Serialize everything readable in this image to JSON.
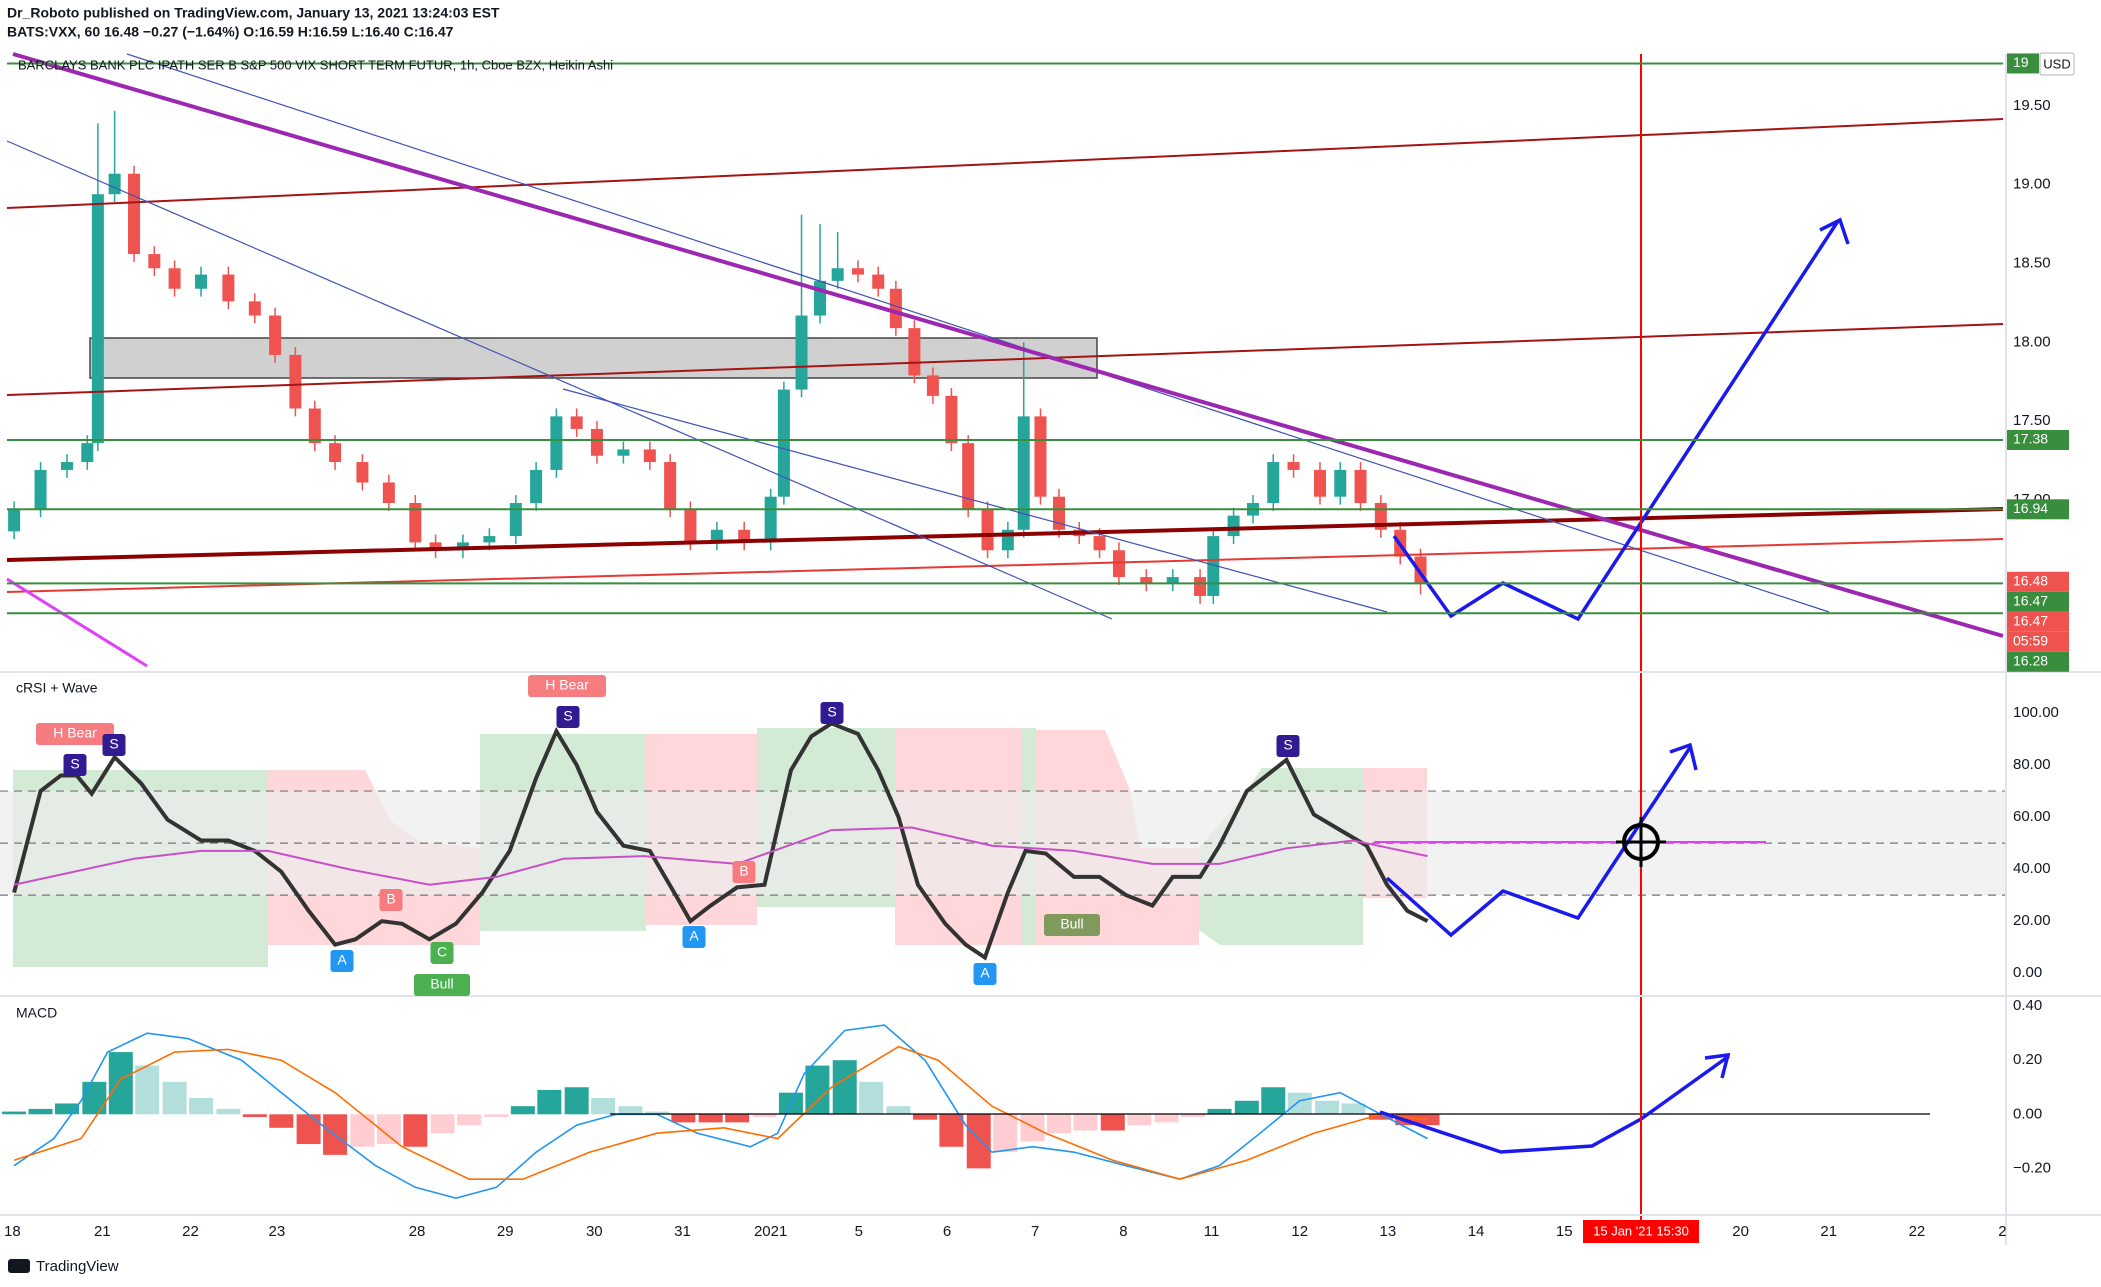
{
  "header": {
    "publisher": "Dr_Roboto published on TradingView.com, January 13, 2021 13:24:03 EST",
    "symbol_line": "BATS:VXX, 60  16.48  −0.27 (−1.64%)  O:16.59  H:16.59  L:16.40  C:16.47",
    "currency": "USD",
    "crosshair_time": "15 Jan '21  15:30"
  },
  "footer": {
    "logo": "TradingView"
  },
  "chart_data": [
    {
      "type": "candlestick",
      "title": "BARCLAYS BANK PLC IPATH SER B S&P 500 VIX SHORT TERM FUTUR, 1h, Cboe BZX, Heikin Ashi",
      "up_color": "#26a69a",
      "down_color": "#ef5350",
      "xlim": [
        -0.14,
        22.61
      ],
      "xticks": [
        {
          "value": 0,
          "label": "18"
        },
        {
          "value": 1.02,
          "label": "21"
        },
        {
          "value": 2.02,
          "label": "22"
        },
        {
          "value": 3.0,
          "label": "23"
        },
        {
          "value": 4.59,
          "label": "28"
        },
        {
          "value": 5.59,
          "label": "29"
        },
        {
          "value": 6.6,
          "label": "30"
        },
        {
          "value": 7.6,
          "label": "31"
        },
        {
          "value": 8.6,
          "label": "2021"
        },
        {
          "value": 9.6,
          "label": "5"
        },
        {
          "value": 10.6,
          "label": "6"
        },
        {
          "value": 11.6,
          "label": "7"
        },
        {
          "value": 12.6,
          "label": "8"
        },
        {
          "value": 13.6,
          "label": "11"
        },
        {
          "value": 14.6,
          "label": "12"
        },
        {
          "value": 15.6,
          "label": "13"
        },
        {
          "value": 16.6,
          "label": "14"
        },
        {
          "value": 17.6,
          "label": "15"
        },
        {
          "value": 19.6,
          "label": "20"
        },
        {
          "value": 20.6,
          "label": "21"
        },
        {
          "value": 21.6,
          "label": "22"
        },
        {
          "value": 22.57,
          "label": "2"
        }
      ],
      "ylim": [
        15.92,
        19.83
      ],
      "yticks": [
        {
          "value": 17,
          "label": "17.00"
        },
        {
          "value": 17.5,
          "label": "17.50"
        },
        {
          "value": 18,
          "label": "18.00"
        },
        {
          "value": 18.5,
          "label": "18.50"
        },
        {
          "value": 19,
          "label": "19.00"
        },
        {
          "value": 19.5,
          "label": "19.50"
        }
      ],
      "grid": false,
      "x": [
        0.02,
        0.32,
        0.62,
        0.85,
        0.97,
        1.16,
        1.38,
        1.61,
        1.84,
        2.14,
        2.45,
        2.75,
        2.98,
        3.21,
        3.43,
        3.66,
        3.97,
        4.27,
        4.57,
        4.8,
        5.11,
        5.41,
        5.71,
        5.94,
        6.17,
        6.4,
        6.63,
        6.93,
        7.23,
        7.46,
        7.69,
        7.99,
        8.3,
        8.6,
        8.75,
        8.95,
        9.16,
        9.36,
        9.59,
        9.82,
        10.02,
        10.23,
        10.44,
        10.65,
        10.84,
        11.06,
        11.29,
        11.47,
        11.66,
        11.87,
        12.1,
        12.33,
        12.55,
        12.86,
        13.16,
        13.47,
        13.62,
        13.85,
        14.07,
        14.3,
        14.53,
        14.83,
        15.06,
        15.29,
        15.52,
        15.74,
        15.97
      ],
      "open": [
        16.8,
        16.94,
        17.19,
        17.24,
        17.36,
        18.94,
        19.07,
        18.56,
        18.47,
        18.34,
        18.43,
        18.26,
        18.17,
        17.92,
        17.58,
        17.36,
        17.24,
        17.11,
        16.98,
        16.73,
        16.68,
        16.73,
        16.77,
        16.98,
        17.19,
        17.53,
        17.45,
        17.28,
        17.32,
        17.24,
        16.94,
        16.73,
        16.81,
        16.73,
        17.02,
        17.7,
        18.17,
        18.39,
        18.47,
        18.43,
        18.34,
        18.09,
        17.79,
        17.66,
        17.36,
        16.94,
        16.68,
        16.81,
        17.53,
        17.02,
        16.81,
        16.77,
        16.68,
        16.51,
        16.47,
        16.51,
        16.39,
        16.77,
        16.9,
        16.98,
        17.24,
        17.19,
        17.02,
        17.19,
        16.98,
        16.81,
        16.64
      ],
      "high": [
        16.99,
        17.24,
        17.29,
        17.41,
        19.39,
        19.47,
        19.12,
        18.61,
        18.52,
        18.48,
        18.48,
        18.31,
        18.22,
        17.97,
        17.63,
        17.41,
        17.29,
        17.16,
        17.03,
        16.78,
        16.78,
        16.82,
        17.03,
        17.24,
        17.58,
        17.58,
        17.5,
        17.37,
        17.37,
        17.29,
        16.99,
        16.86,
        16.86,
        17.07,
        17.75,
        18.81,
        18.75,
        18.7,
        18.52,
        18.48,
        18.39,
        18.14,
        17.84,
        17.71,
        17.41,
        16.99,
        16.86,
        18.0,
        17.58,
        17.07,
        16.86,
        16.82,
        16.73,
        16.56,
        16.56,
        16.56,
        16.82,
        16.95,
        17.03,
        17.29,
        17.29,
        17.24,
        17.24,
        17.24,
        17.03,
        16.86,
        16.69
      ],
      "low": [
        16.75,
        16.89,
        17.14,
        17.19,
        17.31,
        18.89,
        18.51,
        18.42,
        18.29,
        18.29,
        18.21,
        18.12,
        17.87,
        17.53,
        17.31,
        17.19,
        17.06,
        16.93,
        16.68,
        16.63,
        16.63,
        16.68,
        16.72,
        16.93,
        17.14,
        17.4,
        17.23,
        17.23,
        17.19,
        16.89,
        16.68,
        16.68,
        16.68,
        16.68,
        16.97,
        17.65,
        18.12,
        18.34,
        18.38,
        18.29,
        18.04,
        17.74,
        17.61,
        17.31,
        16.89,
        16.63,
        16.63,
        16.76,
        16.97,
        16.76,
        16.72,
        16.63,
        16.46,
        16.42,
        16.42,
        16.34,
        16.34,
        16.72,
        16.85,
        16.93,
        17.14,
        16.97,
        16.97,
        16.93,
        16.76,
        16.59,
        16.4
      ],
      "close": [
        16.94,
        17.19,
        17.24,
        17.36,
        18.94,
        19.07,
        18.56,
        18.47,
        18.34,
        18.43,
        18.26,
        18.17,
        17.92,
        17.58,
        17.36,
        17.24,
        17.11,
        16.98,
        16.73,
        16.68,
        16.73,
        16.77,
        16.98,
        17.19,
        17.53,
        17.45,
        17.28,
        17.32,
        17.24,
        16.94,
        16.73,
        16.81,
        16.73,
        17.02,
        17.7,
        18.17,
        18.39,
        18.47,
        18.43,
        18.34,
        18.09,
        17.79,
        17.66,
        17.36,
        16.94,
        16.68,
        16.81,
        17.53,
        17.02,
        16.81,
        16.77,
        16.68,
        16.51,
        16.47,
        16.51,
        16.39,
        16.77,
        16.9,
        16.98,
        17.24,
        17.19,
        17.02,
        17.19,
        16.98,
        16.81,
        16.64,
        16.47
      ],
      "price_labels": [
        {
          "label": "19",
          "value": 19.77,
          "color": "#388e3c"
        },
        {
          "label": "17.38",
          "value": 17.38,
          "color": "#388e3c"
        },
        {
          "label": "16.94",
          "value": 16.94,
          "color": "#388e3c"
        },
        {
          "label": "16.48",
          "value": 16.48,
          "color": "#ef5350"
        },
        {
          "label": "16.47",
          "value": 16.47,
          "color": "#388e3c"
        },
        {
          "label": "16.47",
          "value": 16.47,
          "color": "#ef5350"
        },
        {
          "label": "05:59",
          "color": "#ef5350"
        },
        {
          "label": "16.28",
          "value": 16.28,
          "color": "#388e3c"
        }
      ]
    },
    {
      "type": "line",
      "title": "cRSI + Wave",
      "ylim": [
        -8,
        115
      ],
      "yticks": [
        {
          "value": 0,
          "label": "0.00"
        },
        {
          "value": 20,
          "label": "20.00"
        },
        {
          "value": 40,
          "label": "40.00"
        },
        {
          "value": 60,
          "label": "60.00"
        },
        {
          "value": 80,
          "label": "80.00"
        },
        {
          "value": 100,
          "label": "100.00"
        }
      ],
      "levels": [
        30,
        50,
        70
      ],
      "series": [
        {
          "color": "#333333",
          "x": [
            0.02,
            0.32,
            0.55,
            0.73,
            0.9,
            1.16,
            1.46,
            1.76,
            2.14,
            2.45,
            2.75,
            3.05,
            3.36,
            3.66,
            3.89,
            4.19,
            4.42,
            4.73,
            5.03,
            5.33,
            5.64,
            5.94,
            6.17,
            6.4,
            6.63,
            6.93,
            7.23,
            7.54,
            7.69,
            7.92,
            8.22,
            8.53,
            8.83,
            9.06,
            9.29,
            9.59,
            9.82,
            10.05,
            10.27,
            10.58,
            10.81,
            11.03,
            11.29,
            11.49,
            11.72,
            12.04,
            12.33,
            12.63,
            12.93,
            13.16,
            13.47,
            13.69,
            14.0,
            14.45,
            14.76,
            15.06,
            15.36,
            15.59,
            15.82,
            16.05
          ],
          "values": [
            31,
            70,
            76,
            76,
            69,
            83,
            73,
            59,
            51,
            51,
            47,
            39,
            24,
            11,
            13,
            20,
            19,
            13,
            19,
            31,
            47,
            75,
            93,
            80,
            62,
            49,
            47,
            29,
            20,
            26,
            33,
            34,
            78,
            91,
            96,
            92,
            78,
            60,
            34,
            19,
            11,
            6,
            31,
            47,
            46,
            37,
            37,
            30,
            26,
            37,
            37,
            49,
            70,
            82,
            61,
            55,
            49,
            34,
            24,
            20
          ]
        },
        {
          "color": "#c94fc9",
          "x": [
            0.02,
            1.38,
            2.14,
            2.9,
            3.81,
            4.73,
            5.49,
            6.25,
            7.16,
            8.22,
            9.29,
            10.2,
            11.11,
            12.04,
            12.93,
            13.69,
            14.45,
            15.21,
            16.05
          ],
          "values": [
            34,
            44,
            47,
            47,
            40,
            34,
            37,
            44,
            45,
            42,
            55,
            56,
            49,
            47,
            42,
            42,
            48,
            51,
            45
          ]
        }
      ],
      "annotations": [
        {
          "text": "H Bear",
          "color": "#f77c80"
        },
        {
          "text": "S",
          "color": "#311b92"
        },
        {
          "text": "S",
          "color": "#311b92"
        },
        {
          "text": "H Bear",
          "color": "#f77c80"
        },
        {
          "text": "S",
          "color": "#311b92"
        },
        {
          "text": "S",
          "color": "#311b92"
        },
        {
          "text": "S",
          "color": "#311b92"
        },
        {
          "text": "B",
          "color": "#f77c80"
        },
        {
          "text": "B",
          "color": "#f77c80"
        },
        {
          "text": "A",
          "color": "#2196f3"
        },
        {
          "text": "C",
          "color": "#4caf50"
        },
        {
          "text": "Bull",
          "color": "#4caf50"
        },
        {
          "text": "A",
          "color": "#2196f3"
        },
        {
          "text": "A",
          "color": "#2196f3"
        },
        {
          "text": "Bull",
          "color": "#7f9a5c"
        }
      ]
    },
    {
      "type": "macd",
      "title": "MACD",
      "ylim": [
        -0.365,
        0.43
      ],
      "yticks": [
        {
          "value": -0.2,
          "label": "−0.20"
        },
        {
          "value": 0,
          "label": "0.00"
        },
        {
          "value": 0.2,
          "label": "0.20"
        },
        {
          "value": 0.4,
          "label": "0.40"
        }
      ],
      "histogram": {
        "colors": [
          "#26a69a",
          "#b2dfdb",
          "#ef5350",
          "#ffcdd2"
        ],
        "x": [
          0.02,
          0.32,
          0.62,
          0.93,
          1.23,
          1.53,
          1.84,
          2.14,
          2.45,
          2.75,
          3.05,
          3.36,
          3.66,
          3.97,
          4.27,
          4.57,
          4.88,
          5.18,
          5.49,
          5.79,
          6.09,
          6.4,
          6.7,
          7.01,
          7.31,
          7.61,
          7.92,
          8.22,
          8.53,
          8.83,
          9.13,
          9.44,
          9.74,
          10.05,
          10.35,
          10.65,
          10.96,
          11.26,
          11.57,
          11.87,
          12.17,
          12.48,
          12.78,
          13.09,
          13.39,
          13.69,
          14.0,
          14.3,
          14.6,
          14.91,
          15.21,
          15.52,
          15.82,
          16.05
        ],
        "values": [
          0.01,
          0.02,
          0.04,
          0.12,
          0.23,
          0.18,
          0.12,
          0.06,
          0.02,
          -0.01,
          -0.05,
          -0.11,
          -0.15,
          -0.12,
          -0.11,
          -0.12,
          -0.07,
          -0.04,
          -0.01,
          0.03,
          0.09,
          0.1,
          0.06,
          0.03,
          0.01,
          -0.03,
          -0.03,
          -0.03,
          -0.01,
          0.08,
          0.18,
          0.2,
          0.12,
          0.03,
          -0.02,
          -0.12,
          -0.2,
          -0.14,
          -0.1,
          -0.07,
          -0.06,
          -0.06,
          -0.04,
          -0.03,
          -0.01,
          0.02,
          0.05,
          0.1,
          0.08,
          0.05,
          0.04,
          -0.02,
          -0.04,
          -0.04
        ]
      },
      "series": [
        {
          "color": "#2196f3",
          "x": [
            0.02,
            0.47,
            0.78,
            1.08,
            1.53,
            1.99,
            2.6,
            3.05,
            3.51,
            4.12,
            4.57,
            5.03,
            5.49,
            5.94,
            6.4,
            6.85,
            7.31,
            7.77,
            8.37,
            8.68,
            8.98,
            9.44,
            9.89,
            10.35,
            10.81,
            11.11,
            11.57,
            12.04,
            12.63,
            13.24,
            13.69,
            14.15,
            14.6,
            15.06,
            15.52,
            16.05
          ],
          "values": [
            -0.19,
            -0.09,
            0.05,
            0.23,
            0.3,
            0.28,
            0.2,
            0.08,
            -0.04,
            -0.19,
            -0.27,
            -0.31,
            -0.27,
            -0.14,
            -0.04,
            0,
            0,
            -0.07,
            -0.12,
            -0.07,
            0.15,
            0.31,
            0.33,
            0.2,
            -0.04,
            -0.14,
            -0.12,
            -0.14,
            -0.19,
            -0.24,
            -0.19,
            -0.07,
            0.05,
            0.08,
            0,
            -0.09
          ]
        },
        {
          "color": "#ff6d00",
          "x": [
            0.02,
            0.78,
            1.23,
            1.84,
            2.45,
            3.05,
            3.66,
            4.42,
            5.18,
            5.79,
            6.55,
            7.31,
            8.07,
            8.68,
            9.29,
            10.05,
            10.5,
            11.11,
            11.72,
            12.48,
            13.24,
            14.0,
            14.76,
            15.52,
            16.05
          ],
          "values": [
            -0.17,
            -0.09,
            0.13,
            0.23,
            0.24,
            0.2,
            0.08,
            -0.12,
            -0.24,
            -0.24,
            -0.14,
            -0.07,
            -0.05,
            -0.09,
            0.1,
            0.25,
            0.2,
            0.03,
            -0.07,
            -0.17,
            -0.24,
            -0.17,
            -0.07,
            0,
            -0.02
          ]
        }
      ]
    }
  ]
}
